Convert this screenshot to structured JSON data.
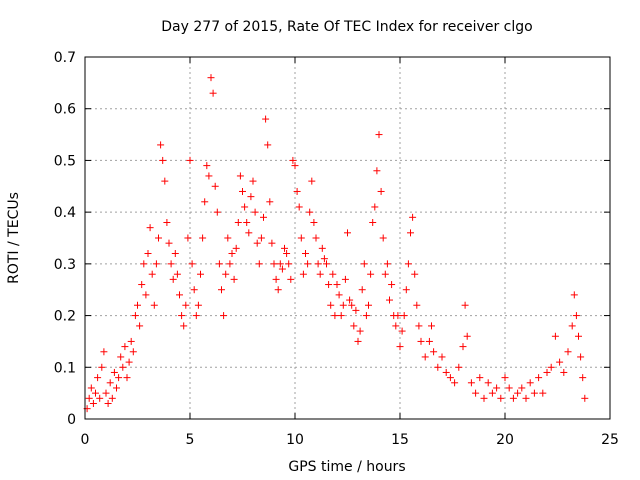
{
  "chart_data": {
    "type": "scatter",
    "title": "Day 277 of 2015, Rate Of TEC Index for receiver clgo",
    "xlabel": "GPS time / hours",
    "ylabel": "ROTI / TECUs",
    "xlim": [
      0,
      25
    ],
    "ylim": [
      0,
      0.7
    ],
    "xticks": [
      0,
      5,
      10,
      15,
      20,
      25
    ],
    "xtick_labels": [
      "0",
      "5",
      "10",
      "15",
      "20",
      "25"
    ],
    "yticks": [
      0,
      0.1,
      0.2,
      0.3,
      0.4,
      0.5,
      0.6,
      0.7
    ],
    "ytick_labels": [
      "0",
      "0.1",
      "0.2",
      "0.3",
      "0.4",
      "0.5",
      "0.6",
      "0.7"
    ],
    "grid": true,
    "marker": "plus",
    "color": "#ff0000",
    "series": [
      {
        "points": [
          [
            0.1,
            0.02
          ],
          [
            0.2,
            0.04
          ],
          [
            0.3,
            0.06
          ],
          [
            0.4,
            0.03
          ],
          [
            0.5,
            0.05
          ],
          [
            0.6,
            0.08
          ],
          [
            0.7,
            0.04
          ],
          [
            0.8,
            0.1
          ],
          [
            0.9,
            0.13
          ],
          [
            1.0,
            0.05
          ],
          [
            1.1,
            0.03
          ],
          [
            1.2,
            0.07
          ],
          [
            1.3,
            0.04
          ],
          [
            1.4,
            0.09
          ],
          [
            1.5,
            0.06
          ],
          [
            1.6,
            0.08
          ],
          [
            1.7,
            0.12
          ],
          [
            1.8,
            0.1
          ],
          [
            1.9,
            0.14
          ],
          [
            2.0,
            0.08
          ],
          [
            2.1,
            0.11
          ],
          [
            2.2,
            0.15
          ],
          [
            2.3,
            0.13
          ],
          [
            2.4,
            0.2
          ],
          [
            2.5,
            0.22
          ],
          [
            2.6,
            0.18
          ],
          [
            2.7,
            0.26
          ],
          [
            2.8,
            0.3
          ],
          [
            2.9,
            0.24
          ],
          [
            3.0,
            0.32
          ],
          [
            3.1,
            0.37
          ],
          [
            3.2,
            0.28
          ],
          [
            3.3,
            0.22
          ],
          [
            3.4,
            0.3
          ],
          [
            3.5,
            0.35
          ],
          [
            3.6,
            0.53
          ],
          [
            3.7,
            0.5
          ],
          [
            3.8,
            0.46
          ],
          [
            3.9,
            0.38
          ],
          [
            4.0,
            0.34
          ],
          [
            4.1,
            0.3
          ],
          [
            4.2,
            0.27
          ],
          [
            4.3,
            0.32
          ],
          [
            4.4,
            0.28
          ],
          [
            4.5,
            0.24
          ],
          [
            4.6,
            0.2
          ],
          [
            4.7,
            0.18
          ],
          [
            4.8,
            0.22
          ],
          [
            4.9,
            0.35
          ],
          [
            5.0,
            0.5
          ],
          [
            5.1,
            0.3
          ],
          [
            5.2,
            0.25
          ],
          [
            5.3,
            0.2
          ],
          [
            5.4,
            0.22
          ],
          [
            5.5,
            0.28
          ],
          [
            5.6,
            0.35
          ],
          [
            5.7,
            0.42
          ],
          [
            5.8,
            0.49
          ],
          [
            5.9,
            0.47
          ],
          [
            6.0,
            0.66
          ],
          [
            6.1,
            0.63
          ],
          [
            6.2,
            0.45
          ],
          [
            6.3,
            0.4
          ],
          [
            6.4,
            0.3
          ],
          [
            6.5,
            0.25
          ],
          [
            6.6,
            0.2
          ],
          [
            6.7,
            0.28
          ],
          [
            6.8,
            0.35
          ],
          [
            6.9,
            0.3
          ],
          [
            7.0,
            0.32
          ],
          [
            7.1,
            0.27
          ],
          [
            7.2,
            0.33
          ],
          [
            7.3,
            0.38
          ],
          [
            7.4,
            0.47
          ],
          [
            7.5,
            0.44
          ],
          [
            7.6,
            0.41
          ],
          [
            7.7,
            0.38
          ],
          [
            7.8,
            0.36
          ],
          [
            7.9,
            0.43
          ],
          [
            8.0,
            0.46
          ],
          [
            8.1,
            0.4
          ],
          [
            8.2,
            0.34
          ],
          [
            8.3,
            0.3
          ],
          [
            8.4,
            0.35
          ],
          [
            8.5,
            0.39
          ],
          [
            8.6,
            0.58
          ],
          [
            8.7,
            0.53
          ],
          [
            8.8,
            0.42
          ],
          [
            8.9,
            0.34
          ],
          [
            9.0,
            0.3
          ],
          [
            9.1,
            0.27
          ],
          [
            9.2,
            0.25
          ],
          [
            9.3,
            0.3
          ],
          [
            9.4,
            0.29
          ],
          [
            9.5,
            0.33
          ],
          [
            9.6,
            0.32
          ],
          [
            9.7,
            0.3
          ],
          [
            9.8,
            0.27
          ],
          [
            9.9,
            0.5
          ],
          [
            10.0,
            0.49
          ],
          [
            10.1,
            0.44
          ],
          [
            10.2,
            0.41
          ],
          [
            10.3,
            0.35
          ],
          [
            10.4,
            0.28
          ],
          [
            10.5,
            0.32
          ],
          [
            10.6,
            0.3
          ],
          [
            10.7,
            0.4
          ],
          [
            10.8,
            0.46
          ],
          [
            10.9,
            0.38
          ],
          [
            11.0,
            0.35
          ],
          [
            11.1,
            0.3
          ],
          [
            11.2,
            0.28
          ],
          [
            11.3,
            0.33
          ],
          [
            11.4,
            0.31
          ],
          [
            11.5,
            0.3
          ],
          [
            11.6,
            0.26
          ],
          [
            11.7,
            0.22
          ],
          [
            11.8,
            0.28
          ],
          [
            11.9,
            0.2
          ],
          [
            12.0,
            0.26
          ],
          [
            12.1,
            0.24
          ],
          [
            12.2,
            0.2
          ],
          [
            12.3,
            0.22
          ],
          [
            12.4,
            0.27
          ],
          [
            12.5,
            0.36
          ],
          [
            12.6,
            0.23
          ],
          [
            12.7,
            0.22
          ],
          [
            12.8,
            0.18
          ],
          [
            12.9,
            0.21
          ],
          [
            13.0,
            0.15
          ],
          [
            13.1,
            0.17
          ],
          [
            13.2,
            0.25
          ],
          [
            13.3,
            0.3
          ],
          [
            13.4,
            0.2
          ],
          [
            13.5,
            0.22
          ],
          [
            13.6,
            0.28
          ],
          [
            13.7,
            0.38
          ],
          [
            13.8,
            0.41
          ],
          [
            13.9,
            0.48
          ],
          [
            14.0,
            0.55
          ],
          [
            14.1,
            0.44
          ],
          [
            14.2,
            0.35
          ],
          [
            14.3,
            0.28
          ],
          [
            14.4,
            0.3
          ],
          [
            14.5,
            0.23
          ],
          [
            14.6,
            0.26
          ],
          [
            14.7,
            0.2
          ],
          [
            14.8,
            0.18
          ],
          [
            14.9,
            0.2
          ],
          [
            15.0,
            0.14
          ],
          [
            15.1,
            0.17
          ],
          [
            15.2,
            0.2
          ],
          [
            15.3,
            0.25
          ],
          [
            15.4,
            0.3
          ],
          [
            15.5,
            0.36
          ],
          [
            15.6,
            0.39
          ],
          [
            15.7,
            0.28
          ],
          [
            15.8,
            0.22
          ],
          [
            15.9,
            0.18
          ],
          [
            16.0,
            0.15
          ],
          [
            16.2,
            0.12
          ],
          [
            16.4,
            0.15
          ],
          [
            16.5,
            0.18
          ],
          [
            16.6,
            0.13
          ],
          [
            16.8,
            0.1
          ],
          [
            17.0,
            0.12
          ],
          [
            17.2,
            0.09
          ],
          [
            17.4,
            0.08
          ],
          [
            17.6,
            0.07
          ],
          [
            17.8,
            0.1
          ],
          [
            18.0,
            0.14
          ],
          [
            18.1,
            0.22
          ],
          [
            18.2,
            0.16
          ],
          [
            18.4,
            0.07
          ],
          [
            18.6,
            0.05
          ],
          [
            18.8,
            0.08
          ],
          [
            19.0,
            0.04
          ],
          [
            19.2,
            0.07
          ],
          [
            19.4,
            0.05
          ],
          [
            19.6,
            0.06
          ],
          [
            19.8,
            0.04
          ],
          [
            20.0,
            0.08
          ],
          [
            20.2,
            0.06
          ],
          [
            20.4,
            0.04
          ],
          [
            20.6,
            0.05
          ],
          [
            20.8,
            0.06
          ],
          [
            21.0,
            0.04
          ],
          [
            21.2,
            0.07
          ],
          [
            21.4,
            0.05
          ],
          [
            21.6,
            0.08
          ],
          [
            21.8,
            0.05
          ],
          [
            22.0,
            0.09
          ],
          [
            22.2,
            0.1
          ],
          [
            22.4,
            0.16
          ],
          [
            22.6,
            0.11
          ],
          [
            22.8,
            0.09
          ],
          [
            23.0,
            0.13
          ],
          [
            23.2,
            0.18
          ],
          [
            23.3,
            0.24
          ],
          [
            23.4,
            0.2
          ],
          [
            23.5,
            0.16
          ],
          [
            23.6,
            0.12
          ],
          [
            23.7,
            0.08
          ],
          [
            23.8,
            0.04
          ]
        ]
      }
    ]
  }
}
